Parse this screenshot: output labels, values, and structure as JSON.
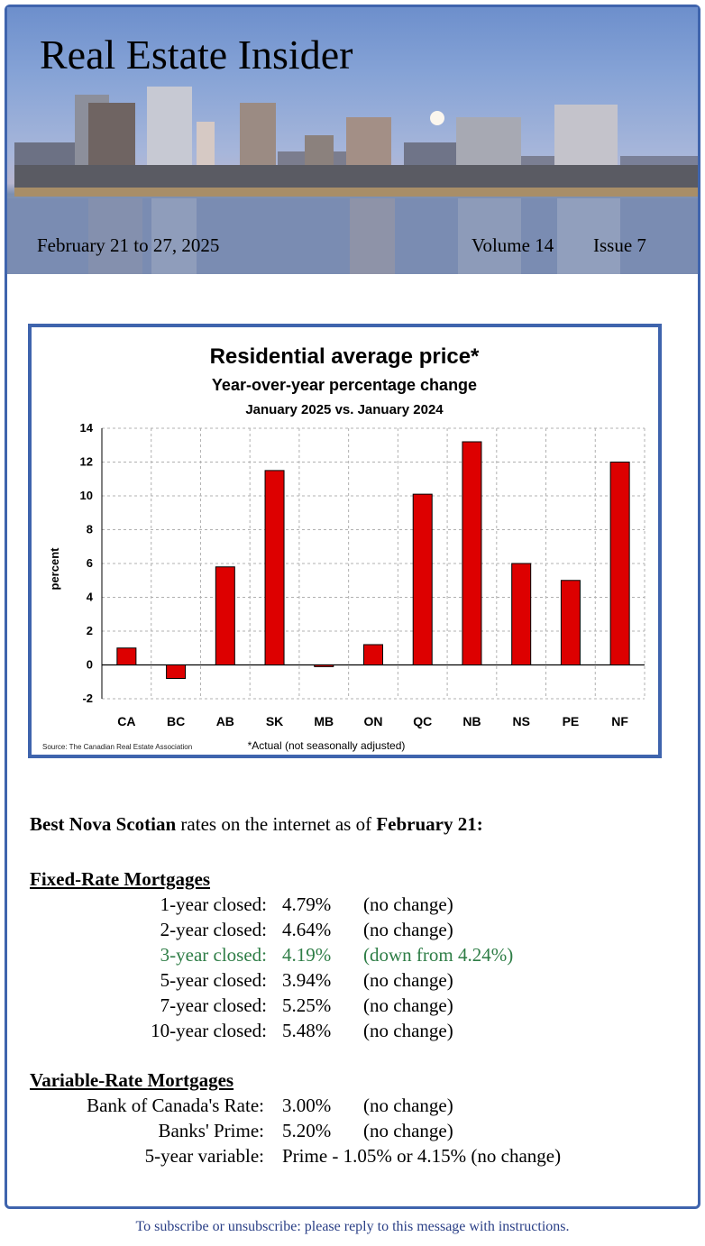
{
  "header": {
    "title": "Real Estate Insider",
    "date_range": "February 21 to 27, 2025",
    "volume": "Volume 14",
    "issue": "Issue 7"
  },
  "chart_data": {
    "type": "bar",
    "title": "Residential average price*",
    "subtitle": "Year-over-year percentage change",
    "subtitle2": "January 2025 vs. January 2024",
    "ylabel": "percent",
    "xlabel": "",
    "ylim": [
      -2,
      14
    ],
    "yticks": [
      "14",
      "12",
      "10",
      "8",
      "6",
      "4",
      "2",
      "0",
      "-2"
    ],
    "categories": [
      "CA",
      "BC",
      "AB",
      "SK",
      "MB",
      "ON",
      "QC",
      "NB",
      "NS",
      "PE",
      "NF"
    ],
    "values": [
      1.0,
      -0.8,
      5.8,
      11.5,
      -0.1,
      1.2,
      10.1,
      13.2,
      6.0,
      5.0,
      12.0
    ],
    "source": "Source: The Canadian Real Estate Association",
    "footnote": "*Actual (not seasonally adjusted)",
    "bar_color": "#dd0000",
    "grid": true
  },
  "rates": {
    "intro_bold1": "Best Nova Scotian",
    "intro_mid": " rates on the internet as of ",
    "intro_bold2": "February 21:",
    "fixed_heading": "Fixed-Rate Mortgages",
    "fixed": [
      {
        "term": "1-year closed:",
        "rate": "4.79%",
        "change": "(no change)"
      },
      {
        "term": "2-year closed:",
        "rate": "4.64%",
        "change": "(no change)"
      },
      {
        "term": "3-year closed:",
        "rate": "4.19%",
        "change": "(down from 4.24%)"
      },
      {
        "term": "5-year closed:",
        "rate": "3.94%",
        "change": "(no change)"
      },
      {
        "term": "7-year closed:",
        "rate": "5.25%",
        "change": "(no change)"
      },
      {
        "term": "10-year closed:",
        "rate": "5.48%",
        "change": "(no change)"
      }
    ],
    "variable_heading": "Variable-Rate Mortgages",
    "variable": [
      {
        "term": "Bank of Canada's Rate:",
        "rate": "3.00%",
        "change": "(no change)"
      },
      {
        "term": "Banks' Prime:",
        "rate": "5.20%",
        "change": "(no change)"
      },
      {
        "term": "5-year variable:",
        "rate": "Prime - 1.05% or 4.15% (no change)",
        "change": ""
      }
    ],
    "highlight_color": "#2e7d46"
  },
  "footer": {
    "text": "To subscribe or unsubscribe: please reply to this message with instructions."
  }
}
